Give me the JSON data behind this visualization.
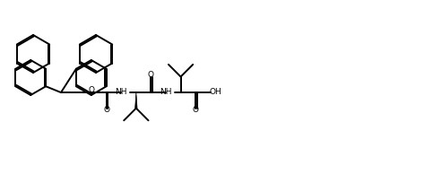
{
  "bg_color": "#ffffff",
  "line_color": "#000000",
  "figsize": [
    4.83,
    2.04
  ],
  "dpi": 100,
  "lw": 1.4,
  "atoms": {
    "O_carbamate": "O",
    "N_carbamate": "NH",
    "N_amide": "NH",
    "O_carbonyl1": "O",
    "O_carbonyl2": "O",
    "OH": "OH"
  }
}
